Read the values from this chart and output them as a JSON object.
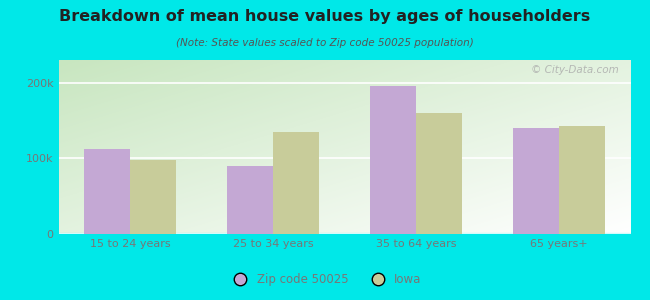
{
  "title": "Breakdown of mean house values by ages of householders",
  "subtitle": "(Note: State values scaled to Zip code 50025 population)",
  "categories": [
    "15 to 24 years",
    "25 to 34 years",
    "35 to 64 years",
    "65 years+"
  ],
  "zip_values": [
    112000,
    90000,
    196000,
    140000
  ],
  "iowa_values": [
    98000,
    135000,
    160000,
    143000
  ],
  "zip_color": "#c4a8d4",
  "iowa_color": "#c8cc9a",
  "background_outer": "#00e8e8",
  "ylim": [
    0,
    230000
  ],
  "ytick_labels": [
    "0",
    "100k",
    "200k"
  ],
  "ytick_vals": [
    0,
    100000,
    200000
  ],
  "bar_width": 0.32,
  "legend_labels": [
    "Zip code 50025",
    "Iowa"
  ],
  "watermark": "© City-Data.com",
  "title_color": "#222222",
  "subtitle_color": "#555555",
  "tick_color": "#777777"
}
